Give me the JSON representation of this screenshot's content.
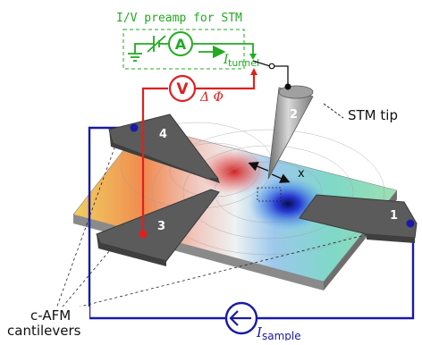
{
  "preamp": {
    "label": "I/V preamp for STM",
    "ammeter_symbol": "A",
    "current_symbol": "I",
    "current_subscript": "tunnel"
  },
  "voltmeter": {
    "symbol": "V",
    "potential_label": "Δ Φ"
  },
  "tip": {
    "number": "2",
    "label": "STM tip"
  },
  "cantilevers": [
    {
      "number": "4"
    },
    {
      "number": "3"
    },
    {
      "number": "1"
    }
  ],
  "distance_label": "x",
  "cantilevers_label": {
    "line1": "c-AFM",
    "line2": "cantilevers"
  },
  "sample_current": {
    "symbol": "I",
    "subscript": "sample"
  },
  "colors": {
    "preamp_green": "#22aa22",
    "voltmeter_red": "#e02020",
    "sample_blue": "#1a1aa8",
    "cantilever_gray": "#5a5a5a",
    "tip_gray": "#8a8a8a"
  }
}
